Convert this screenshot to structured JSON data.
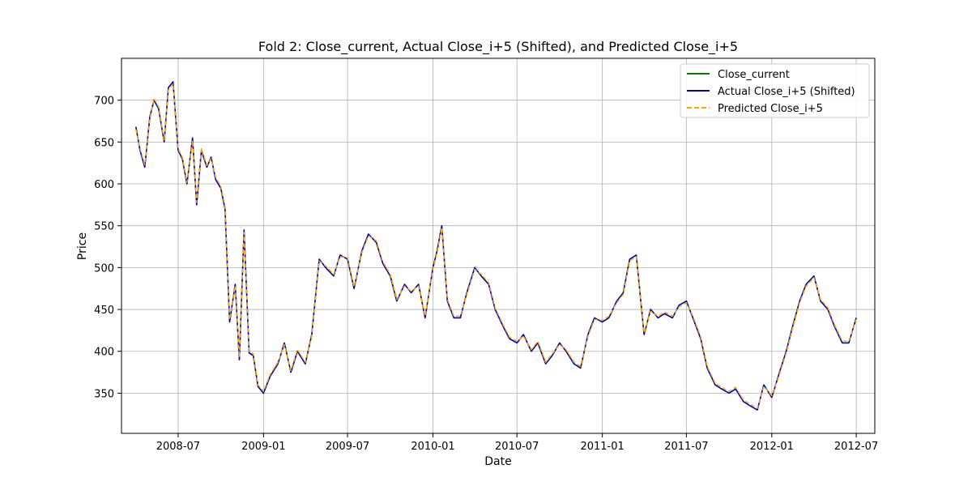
{
  "chart_data": {
    "type": "line",
    "title": "Fold 2: Close_current, Actual Close_i+5 (Shifted), and Predicted Close_i+5",
    "xlabel": "Date",
    "ylabel": "Price",
    "xlim": [
      "2008-03-01",
      "2012-08-10"
    ],
    "ylim": [
      302,
      750
    ],
    "x_ticks": [
      "2008-07",
      "2009-01",
      "2009-07",
      "2010-01",
      "2010-07",
      "2011-01",
      "2011-07",
      "2012-01",
      "2012-07"
    ],
    "y_ticks": [
      350,
      400,
      450,
      500,
      550,
      600,
      650,
      700
    ],
    "grid": true,
    "legend_position": "upper right",
    "series": [
      {
        "name": "Close_current",
        "color": "#008000",
        "style": "solid"
      },
      {
        "name": "Actual Close_i+5 (Shifted)",
        "color": "#0000cc",
        "style": "solid"
      },
      {
        "name": "Predicted Close_i+5",
        "color": "#ffa500",
        "style": "dashed"
      }
    ],
    "x": [
      "2008-04-01",
      "2008-04-10",
      "2008-04-20",
      "2008-05-01",
      "2008-05-10",
      "2008-05-20",
      "2008-06-01",
      "2008-06-10",
      "2008-06-20",
      "2008-07-01",
      "2008-07-10",
      "2008-07-20",
      "2008-08-01",
      "2008-08-10",
      "2008-08-20",
      "2008-09-01",
      "2008-09-10",
      "2008-09-20",
      "2008-10-01",
      "2008-10-10",
      "2008-10-20",
      "2008-11-01",
      "2008-11-10",
      "2008-11-20",
      "2008-12-01",
      "2008-12-10",
      "2008-12-20",
      "2009-01-01",
      "2009-01-15",
      "2009-02-01",
      "2009-02-15",
      "2009-03-01",
      "2009-03-15",
      "2009-04-01",
      "2009-04-15",
      "2009-05-01",
      "2009-05-15",
      "2009-06-01",
      "2009-06-15",
      "2009-07-01",
      "2009-07-15",
      "2009-08-01",
      "2009-08-15",
      "2009-09-01",
      "2009-09-15",
      "2009-10-01",
      "2009-10-15",
      "2009-11-01",
      "2009-11-15",
      "2009-12-01",
      "2009-12-15",
      "2010-01-01",
      "2010-01-10",
      "2010-01-20",
      "2010-02-01",
      "2010-02-15",
      "2010-03-01",
      "2010-03-15",
      "2010-04-01",
      "2010-04-15",
      "2010-05-01",
      "2010-05-15",
      "2010-06-01",
      "2010-06-15",
      "2010-07-01",
      "2010-07-15",
      "2010-08-01",
      "2010-08-15",
      "2010-09-01",
      "2010-09-15",
      "2010-10-01",
      "2010-10-15",
      "2010-11-01",
      "2010-11-15",
      "2010-12-01",
      "2010-12-15",
      "2011-01-01",
      "2011-01-15",
      "2011-02-01",
      "2011-02-15",
      "2011-03-01",
      "2011-03-15",
      "2011-04-01",
      "2011-04-15",
      "2011-05-01",
      "2011-05-15",
      "2011-06-01",
      "2011-06-15",
      "2011-07-01",
      "2011-07-15",
      "2011-08-01",
      "2011-08-15",
      "2011-09-01",
      "2011-09-15",
      "2011-10-01",
      "2011-10-15",
      "2011-11-01",
      "2011-11-15",
      "2011-12-01",
      "2011-12-15",
      "2012-01-01",
      "2012-01-15",
      "2012-02-01",
      "2012-02-15",
      "2012-03-01",
      "2012-03-15",
      "2012-04-01",
      "2012-04-15",
      "2012-05-01",
      "2012-05-15",
      "2012-06-01",
      "2012-06-15",
      "2012-07-01"
    ],
    "actual": [
      668,
      640,
      620,
      680,
      700,
      690,
      650,
      715,
      722,
      640,
      630,
      600,
      655,
      575,
      640,
      620,
      632,
      605,
      595,
      570,
      435,
      480,
      390,
      545,
      398,
      395,
      358,
      350,
      370,
      385,
      410,
      375,
      400,
      385,
      420,
      510,
      500,
      490,
      515,
      510,
      475,
      520,
      540,
      530,
      505,
      490,
      460,
      480,
      470,
      480,
      440,
      500,
      520,
      550,
      460,
      440,
      440,
      470,
      500,
      490,
      480,
      450,
      430,
      415,
      410,
      420,
      400,
      410,
      385,
      395,
      410,
      400,
      385,
      380,
      420,
      440,
      435,
      440,
      460,
      470,
      510,
      515,
      420,
      450,
      440,
      445,
      440,
      455,
      460,
      440,
      415,
      380,
      360,
      355,
      350,
      355,
      340,
      335,
      330,
      360,
      345,
      370,
      400,
      430,
      460,
      480,
      490,
      460,
      450,
      430,
      410,
      410,
      440
    ],
    "predicted": [
      665,
      642,
      623,
      677,
      702,
      692,
      652,
      712,
      720,
      642,
      632,
      602,
      652,
      578,
      642,
      622,
      630,
      608,
      597,
      573,
      438,
      478,
      393,
      542,
      400,
      397,
      360,
      352,
      372,
      387,
      408,
      377,
      402,
      387,
      418,
      508,
      502,
      492,
      513,
      512,
      477,
      518,
      538,
      532,
      507,
      492,
      462,
      478,
      472,
      478,
      442,
      498,
      518,
      548,
      462,
      442,
      442,
      468,
      498,
      492,
      482,
      452,
      432,
      417,
      412,
      418,
      402,
      412,
      387,
      397,
      408,
      402,
      387,
      382,
      418,
      438,
      437,
      442,
      458,
      468,
      508,
      513,
      422,
      448,
      442,
      447,
      442,
      453,
      458,
      442,
      417,
      382,
      362,
      357,
      352,
      357,
      342,
      337,
      332,
      358,
      347,
      368,
      398,
      428,
      458,
      478,
      488,
      462,
      452,
      432,
      412,
      412,
      438
    ]
  }
}
